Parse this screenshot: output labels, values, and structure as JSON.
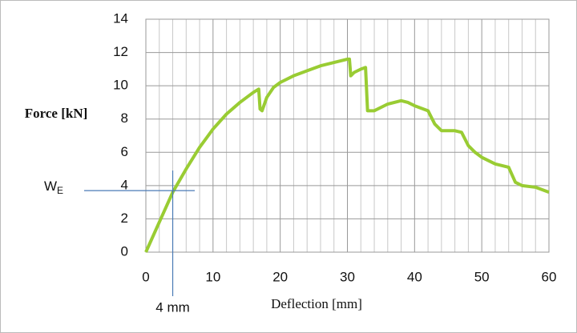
{
  "chart_data": {
    "type": "line",
    "y_label": "Force [kN]",
    "x_label": "Deflection [mm]",
    "x": [
      0,
      2,
      4,
      6,
      8,
      10,
      12,
      14,
      16,
      16.8,
      17,
      17.3,
      18,
      19,
      20,
      22,
      24,
      26,
      28,
      30,
      30.3,
      30.5,
      31,
      32,
      32.7,
      33,
      34,
      36,
      38,
      39,
      40,
      42,
      43,
      44,
      46,
      47,
      48,
      49,
      50,
      52,
      54,
      55,
      56,
      58,
      60
    ],
    "series": [
      {
        "color": "#99cc33",
        "values": [
          0,
          1.8,
          3.6,
          5.0,
          6.3,
          7.4,
          8.3,
          9.0,
          9.6,
          9.8,
          8.6,
          8.5,
          9.3,
          9.9,
          10.2,
          10.6,
          10.9,
          11.2,
          11.4,
          11.6,
          11.6,
          10.6,
          10.8,
          11.0,
          11.1,
          8.5,
          8.5,
          8.9,
          9.1,
          9.0,
          8.8,
          8.5,
          7.7,
          7.3,
          7.3,
          7.2,
          6.4,
          6.0,
          5.7,
          5.3,
          5.1,
          4.2,
          4.0,
          3.9,
          3.6
        ]
      }
    ],
    "xlim": [
      0,
      60
    ],
    "ylim": [
      0,
      14
    ],
    "xticks": [
      0,
      10,
      20,
      30,
      40,
      50,
      60
    ],
    "yticks": [
      0,
      2,
      4,
      6,
      8,
      10,
      12,
      14
    ],
    "xminorticks": [
      2,
      4,
      6,
      8,
      12,
      14,
      16,
      18,
      22,
      24,
      26,
      28,
      32,
      34,
      36,
      38,
      42,
      44,
      46,
      48,
      52,
      54,
      56,
      58
    ],
    "grid": true,
    "annotations": [
      {
        "text": "W",
        "subscript": "E",
        "y": 3.7,
        "color": "#4a7ab5"
      },
      {
        "text": "4 mm",
        "x": 4,
        "color": "#4a7ab5"
      }
    ]
  }
}
